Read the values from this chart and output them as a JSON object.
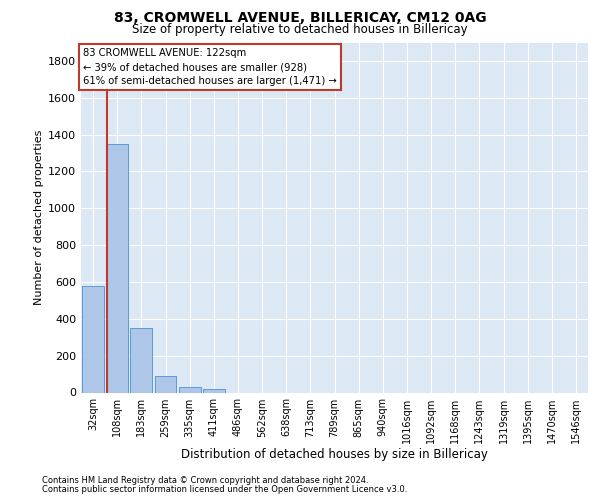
{
  "title": "83, CROMWELL AVENUE, BILLERICAY, CM12 0AG",
  "subtitle": "Size of property relative to detached houses in Billericay",
  "xlabel": "Distribution of detached houses by size in Billericay",
  "ylabel": "Number of detached properties",
  "categories": [
    "32sqm",
    "108sqm",
    "183sqm",
    "259sqm",
    "335sqm",
    "411sqm",
    "486sqm",
    "562sqm",
    "638sqm",
    "713sqm",
    "789sqm",
    "865sqm",
    "940sqm",
    "1016sqm",
    "1092sqm",
    "1168sqm",
    "1243sqm",
    "1319sqm",
    "1395sqm",
    "1470sqm",
    "1546sqm"
  ],
  "values": [
    580,
    1350,
    350,
    90,
    30,
    20,
    0,
    0,
    0,
    0,
    0,
    0,
    0,
    0,
    0,
    0,
    0,
    0,
    0,
    0,
    0
  ],
  "bar_color": "#aec6e8",
  "bar_edge_color": "#5b9bd5",
  "property_line_x": 0.57,
  "property_line_color": "#c0392b",
  "annotation_text": "83 CROMWELL AVENUE: 122sqm\n← 39% of detached houses are smaller (928)\n61% of semi-detached houses are larger (1,471) →",
  "annotation_box_color": "#c0392b",
  "ylim": [
    0,
    1900
  ],
  "yticks": [
    0,
    200,
    400,
    600,
    800,
    1000,
    1200,
    1400,
    1600,
    1800
  ],
  "background_color": "#dde8f5",
  "grid_color": "white",
  "title_fontsize": 10,
  "subtitle_fontsize": 8.5,
  "ylabel_fontsize": 8,
  "xlabel_fontsize": 8.5,
  "tick_fontsize": 7,
  "footer_fontsize": 6.0,
  "footer_line1": "Contains HM Land Registry data © Crown copyright and database right 2024.",
  "footer_line2": "Contains public sector information licensed under the Open Government Licence v3.0."
}
